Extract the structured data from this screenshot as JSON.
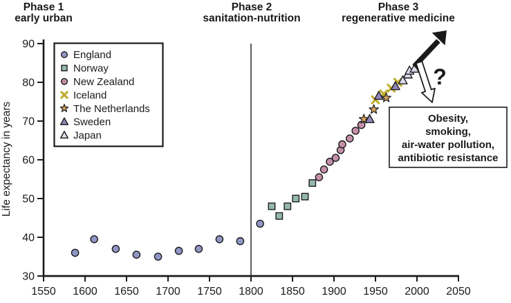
{
  "figure": {
    "phase1": {
      "line1": "Phase 1",
      "line2": "early urban"
    },
    "phase2": {
      "line1": "Phase 2",
      "line2": "sanitation-nutrition"
    },
    "phase3": {
      "line1": "Phase 3",
      "line2": "regenerative medicine"
    },
    "question_mark": "?",
    "annotation": {
      "lines": [
        "Obesity,",
        "smoking,",
        "air-water pollution,",
        "antibiotic resistance"
      ]
    }
  },
  "chart_data": {
    "type": "scatter",
    "title": "",
    "xlabel": "",
    "ylabel": "Life expectancy in years",
    "xlim": [
      1550,
      2050
    ],
    "ylim": [
      30,
      90
    ],
    "x_ticks": [
      1550,
      1600,
      1650,
      1700,
      1750,
      1800,
      1850,
      1900,
      1950,
      2000,
      2050
    ],
    "y_ticks": [
      30,
      40,
      50,
      60,
      70,
      80,
      90
    ],
    "grid": false,
    "legend_position": "upper left",
    "phase_divider_x": 1800,
    "series": [
      {
        "name": "England",
        "marker": "circle",
        "color": "#9296c6",
        "points": [
          [
            1588,
            36
          ],
          [
            1611,
            39.5
          ],
          [
            1637,
            37
          ],
          [
            1662,
            35.5
          ],
          [
            1688,
            35
          ],
          [
            1713,
            36.5
          ],
          [
            1737,
            37
          ],
          [
            1762,
            39.5
          ],
          [
            1787,
            39
          ],
          [
            1811,
            43.5
          ]
        ]
      },
      {
        "name": "Norway",
        "marker": "square",
        "color": "#95b8ae",
        "points": [
          [
            1825,
            48
          ],
          [
            1834,
            45.5
          ],
          [
            1844,
            48
          ],
          [
            1854,
            50
          ],
          [
            1865,
            50.5
          ],
          [
            1874,
            54
          ]
        ]
      },
      {
        "name": "New Zealand",
        "marker": "circle",
        "color": "#c48fa9",
        "points": [
          [
            1882,
            55.5
          ],
          [
            1888,
            57.5
          ],
          [
            1895,
            59.5
          ],
          [
            1902,
            60.5
          ],
          [
            1908,
            62.5
          ],
          [
            1910,
            64
          ],
          [
            1919,
            65.5
          ],
          [
            1926,
            67.5
          ],
          [
            1933,
            69
          ]
        ]
      },
      {
        "name": "Iceland",
        "marker": "x",
        "color": "#bfab28",
        "points": [
          [
            1950,
            75.5
          ],
          [
            1960,
            77
          ],
          [
            1969,
            78.5
          ],
          [
            1977,
            80
          ]
        ]
      },
      {
        "name": "The Netherlands",
        "marker": "star",
        "color": "#d8a35f",
        "points": [
          [
            1936,
            70.5
          ],
          [
            1948,
            73
          ],
          [
            1963,
            76
          ]
        ]
      },
      {
        "name": "Sweden",
        "marker": "triangle",
        "color": "#9186ba",
        "points": [
          [
            1943,
            70.5
          ],
          [
            1954,
            76.5
          ],
          [
            1974,
            79
          ]
        ]
      },
      {
        "name": "Japan",
        "marker": "triangle",
        "color": "#dbd8ec",
        "points": [
          [
            1983,
            80.5
          ],
          [
            1989,
            82
          ],
          [
            1991,
            83
          ],
          [
            1997,
            83.5
          ]
        ]
      }
    ]
  }
}
